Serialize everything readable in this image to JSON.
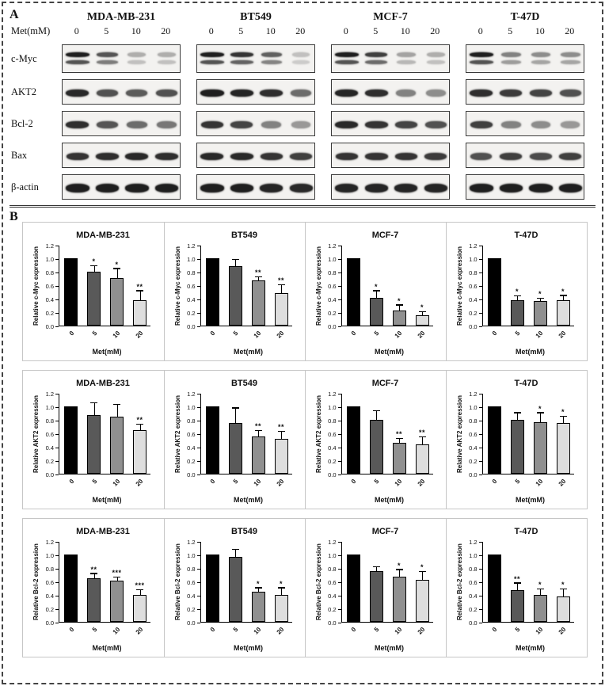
{
  "figure": {
    "panelA_label": "A",
    "panelB_label": "B"
  },
  "panelA": {
    "met_label": "Met(mM)",
    "doses": [
      "0",
      "5",
      "10",
      "20"
    ],
    "cell_lines": [
      "MDA-MB-231",
      "BT549",
      "MCF-7",
      "T-47D"
    ],
    "proteins": [
      "c-Myc",
      "AKT2",
      "Bcl-2",
      "Bax",
      "β-actin"
    ],
    "band_intensities": {
      "MDA-MB-231": {
        "c-Myc": [
          0.95,
          0.7,
          0.3,
          0.3
        ],
        "AKT2": [
          0.9,
          0.72,
          0.68,
          0.72
        ],
        "Bcl-2": [
          0.88,
          0.7,
          0.6,
          0.55
        ],
        "Bax": [
          0.85,
          0.88,
          0.9,
          0.88
        ],
        "β-actin": [
          0.95,
          0.95,
          0.95,
          0.95
        ]
      },
      "BT549": {
        "c-Myc": [
          0.95,
          0.85,
          0.65,
          0.22
        ],
        "AKT2": [
          0.95,
          0.92,
          0.88,
          0.6
        ],
        "Bcl-2": [
          0.85,
          0.78,
          0.5,
          0.4
        ],
        "Bax": [
          0.9,
          0.9,
          0.85,
          0.8
        ],
        "β-actin": [
          0.95,
          0.95,
          0.92,
          0.9
        ]
      },
      "MCF-7": {
        "c-Myc": [
          0.95,
          0.8,
          0.35,
          0.3
        ],
        "AKT2": [
          0.92,
          0.88,
          0.5,
          0.45
        ],
        "Bcl-2": [
          0.9,
          0.85,
          0.78,
          0.72
        ],
        "Bax": [
          0.85,
          0.85,
          0.85,
          0.82
        ],
        "β-actin": [
          0.92,
          0.92,
          0.92,
          0.92
        ]
      },
      "T-47D": {
        "c-Myc": [
          0.95,
          0.5,
          0.45,
          0.45
        ],
        "AKT2": [
          0.88,
          0.82,
          0.78,
          0.72
        ],
        "Bcl-2": [
          0.8,
          0.5,
          0.45,
          0.4
        ],
        "Bax": [
          0.72,
          0.8,
          0.75,
          0.8
        ],
        "β-actin": [
          0.95,
          0.95,
          0.95,
          0.95
        ]
      }
    }
  },
  "chart_data": {
    "type": "bar",
    "categories": [
      "0",
      "5",
      "10",
      "20"
    ],
    "xlabel": "Met(mM)",
    "ylim": [
      0,
      1.2
    ],
    "yticks": [
      0.0,
      0.2,
      0.4,
      0.6,
      0.8,
      1.0,
      1.2
    ],
    "bar_colors": [
      "#000000",
      "#595959",
      "#909090",
      "#dedede"
    ],
    "grid": false,
    "legend": "none",
    "rows": [
      {
        "protein": "c-Myc",
        "ylabel": "Relative c-Myc expression",
        "charts": [
          {
            "title": "MDA-MB-231",
            "values": [
              1.0,
              0.8,
              0.71,
              0.38
            ],
            "errors": [
              0,
              0.08,
              0.13,
              0.13
            ],
            "significance": [
              "",
              "*",
              "*",
              "**"
            ]
          },
          {
            "title": "BT549",
            "values": [
              1.0,
              0.88,
              0.67,
              0.48
            ],
            "errors": [
              0,
              0.1,
              0.05,
              0.12
            ],
            "significance": [
              "",
              "",
              "**",
              "**"
            ]
          },
          {
            "title": "MCF-7",
            "values": [
              1.0,
              0.41,
              0.22,
              0.15
            ],
            "errors": [
              0,
              0.1,
              0.08,
              0.05
            ],
            "significance": [
              "",
              "*",
              "*",
              "*"
            ]
          },
          {
            "title": "T-47D",
            "values": [
              1.0,
              0.38,
              0.37,
              0.38
            ],
            "errors": [
              0,
              0.05,
              0.03,
              0.06
            ],
            "significance": [
              "",
              "*",
              "*",
              "*"
            ]
          }
        ]
      },
      {
        "protein": "AKT2",
        "ylabel": "Relative AKT2 expression",
        "charts": [
          {
            "title": "MDA-MB-231",
            "values": [
              1.0,
              0.87,
              0.85,
              0.65
            ],
            "errors": [
              0,
              0.18,
              0.17,
              0.08
            ],
            "significance": [
              "",
              "",
              "",
              "**"
            ]
          },
          {
            "title": "BT549",
            "values": [
              1.0,
              0.75,
              0.55,
              0.52
            ],
            "errors": [
              0,
              0.22,
              0.08,
              0.1
            ],
            "significance": [
              "",
              "",
              "**",
              "**"
            ]
          },
          {
            "title": "MCF-7",
            "values": [
              1.0,
              0.8,
              0.46,
              0.44
            ],
            "errors": [
              0,
              0.13,
              0.06,
              0.1
            ],
            "significance": [
              "",
              "",
              "**",
              "**"
            ]
          },
          {
            "title": "T-47D",
            "values": [
              1.0,
              0.8,
              0.76,
              0.75
            ],
            "errors": [
              0,
              0.1,
              0.14,
              0.1
            ],
            "significance": [
              "",
              "",
              "*",
              "*"
            ]
          }
        ]
      },
      {
        "protein": "Bcl-2",
        "ylabel": "Relative Bcl-2 expression",
        "charts": [
          {
            "title": "MDA-MB-231",
            "values": [
              1.0,
              0.65,
              0.61,
              0.4
            ],
            "errors": [
              0,
              0.06,
              0.05,
              0.07
            ],
            "significance": [
              "",
              "**",
              "***",
              "***"
            ]
          },
          {
            "title": "BT549",
            "values": [
              1.0,
              0.97,
              0.45,
              0.4
            ],
            "errors": [
              0,
              0.1,
              0.05,
              0.1
            ],
            "significance": [
              "",
              "",
              "*",
              "*"
            ]
          },
          {
            "title": "MCF-7",
            "values": [
              1.0,
              0.75,
              0.67,
              0.62
            ],
            "errors": [
              0,
              0.06,
              0.1,
              0.12
            ],
            "significance": [
              "",
              "",
              "*",
              "*"
            ]
          },
          {
            "title": "T-47D",
            "values": [
              1.0,
              0.47,
              0.4,
              0.38
            ],
            "errors": [
              0,
              0.1,
              0.08,
              0.1
            ],
            "significance": [
              "",
              "**",
              "*",
              "*"
            ]
          }
        ]
      }
    ]
  }
}
